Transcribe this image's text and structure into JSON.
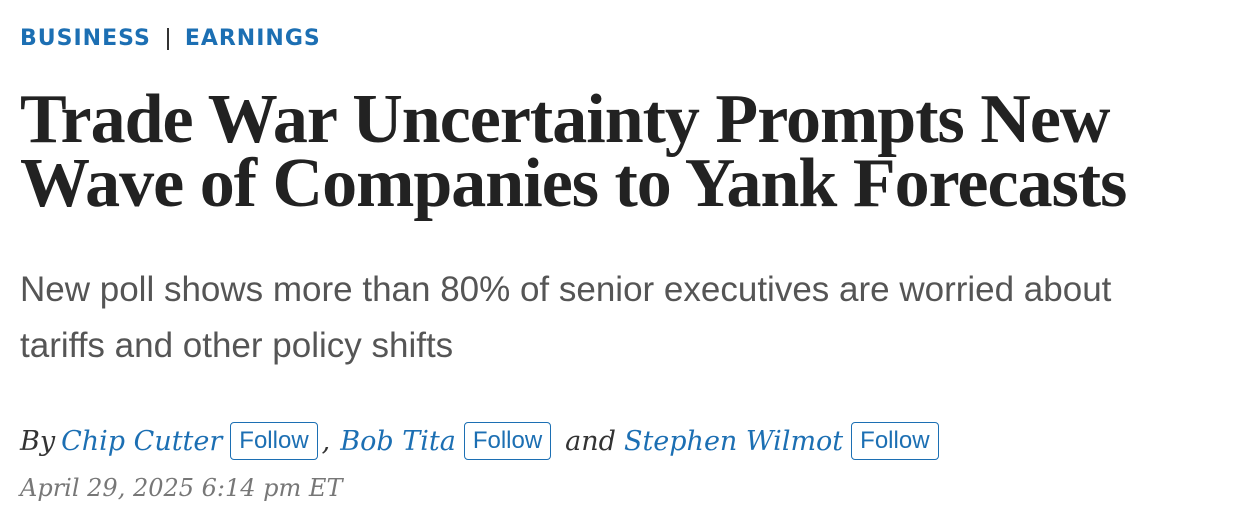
{
  "header": {
    "sections": [
      "BUSINESS",
      "EARNINGS"
    ]
  },
  "headline": [
    "Trade War Uncertainty Prompts New",
    "Wave of Companies to Yank Forecasts"
  ],
  "subheadline": [
    "New poll shows more than 80% of senior executives are worried about",
    "tariffs and other policy shifts"
  ],
  "byline": {
    "prefix": "By",
    "authors": [
      {
        "name": "Chip Cutter",
        "follow": "Follow"
      },
      {
        "name": "Bob Tita",
        "follow": "Follow"
      },
      {
        "name": "Stephen Wilmot",
        "follow": "Follow"
      }
    ],
    "separators": [
      ",",
      "and"
    ]
  },
  "timestamp": "April 29, 2025 6:14 pm ET"
}
